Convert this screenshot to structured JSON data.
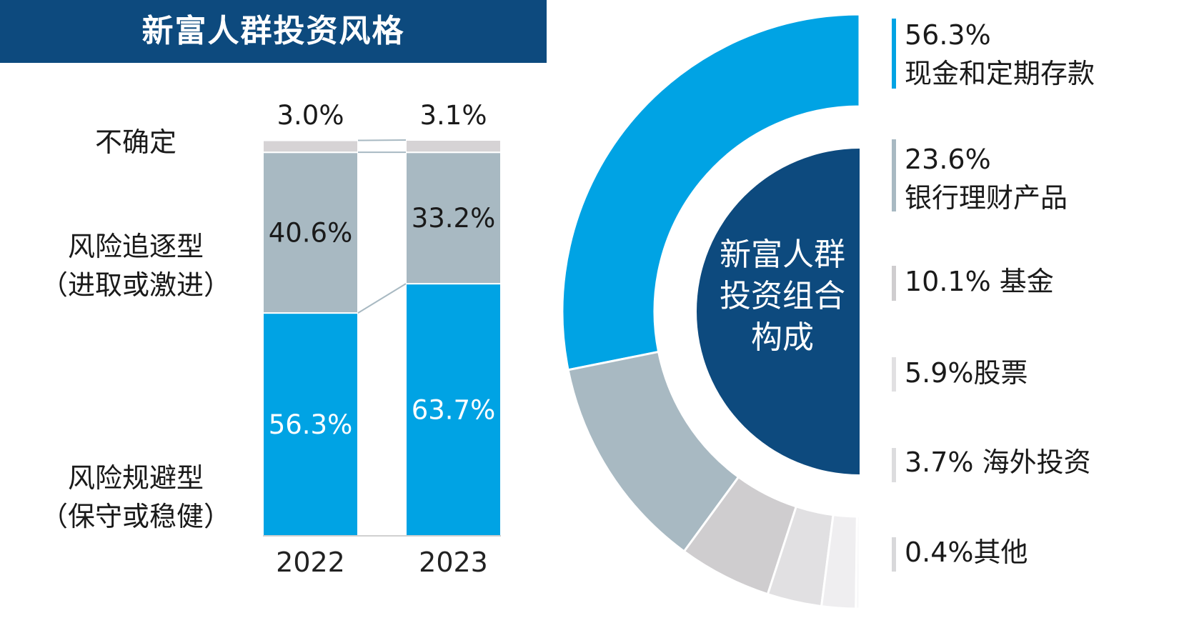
{
  "header": {
    "title": "新富人群投资风格"
  },
  "style_labels": {
    "uncertain": "不确定",
    "risk_seeking_line1": "风险追逐型",
    "risk_seeking_line2": "（进取或激进）",
    "risk_averse_line1": "风险规避型",
    "risk_averse_line2": "（保守或稳健）"
  },
  "donut_center": {
    "line1": "新富人群",
    "line2": "投资组合",
    "line3": "构成"
  },
  "colors": {
    "title_bg": "#0d4a7e",
    "averse": "#00a3e4",
    "seeking": "#a8b9c2",
    "uncertain": "#d6d3d5",
    "center": "#0d4a7e",
    "label_text_dark": "#1a1a1a",
    "label_text_light": "#ffffff"
  },
  "chart_data": [
    {
      "type": "bar",
      "stacked": true,
      "categories": [
        "2022",
        "2023"
      ],
      "series": [
        {
          "name": "风险规避型（保守或稳健）",
          "values": [
            56.3,
            63.7
          ],
          "labels": [
            "56.3%",
            "63.7%"
          ]
        },
        {
          "name": "风险追逐型（进取或激进）",
          "values": [
            40.6,
            33.2
          ],
          "labels": [
            "40.6%",
            "33.2%"
          ]
        },
        {
          "name": "不确定",
          "values": [
            3.0,
            3.1
          ],
          "labels": [
            "3.0%",
            "3.1%"
          ]
        }
      ],
      "ylim": [
        0,
        100
      ],
      "title": "",
      "xlabel": "",
      "ylabel": "",
      "grid": false
    },
    {
      "type": "pie",
      "variant": "half-donut",
      "slices": [
        {
          "value": 56.3,
          "label": "56.3%",
          "name": "现金和定期存款",
          "color": "#00a3e4"
        },
        {
          "value": 23.6,
          "label": "23.6%",
          "name": "银行理财产品",
          "color": "#a8b9c2"
        },
        {
          "value": 10.1,
          "label": "10.1%",
          "name": "基金",
          "color": "#cfcdcf"
        },
        {
          "value": 5.9,
          "label": "5.9%",
          "name": "股票",
          "color": "#e1e0e2"
        },
        {
          "value": 3.7,
          "label": "3.7%",
          "name": "海外投资",
          "color": "#efeef0"
        },
        {
          "value": 0.4,
          "label": "0.4%",
          "name": "其他",
          "color": "#f7f7f8"
        }
      ],
      "legend_position": "right"
    }
  ]
}
